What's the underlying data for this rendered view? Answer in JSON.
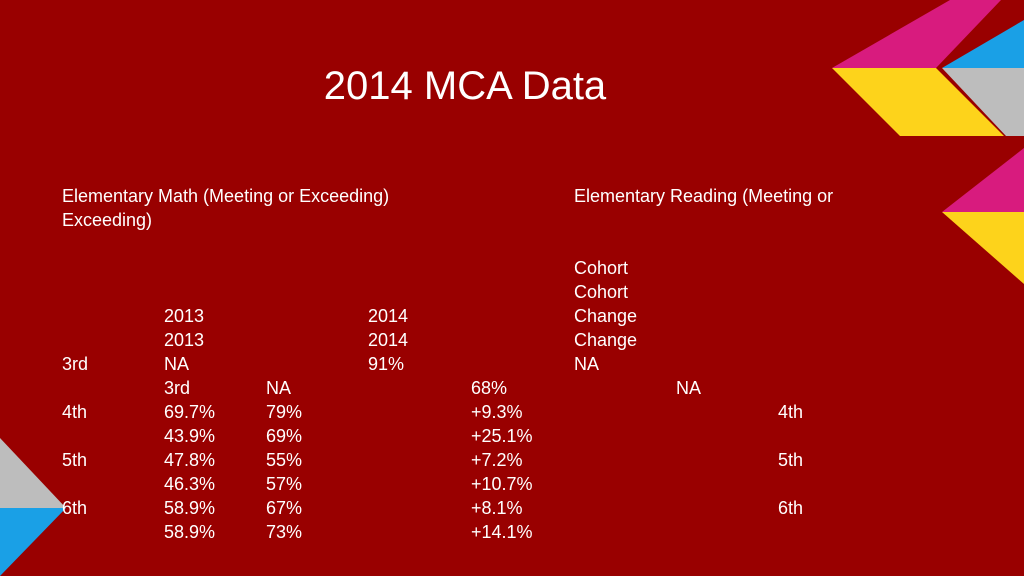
{
  "slide": {
    "title": "2014 MCA Data",
    "math_header": "Elementary Math (Meeting or Exceeding) Exceeding)",
    "reading_header": "Elementary Reading (Meeting or"
  },
  "rows": [
    [
      "Cohort"
    ],
    [
      "Cohort"
    ],
    [
      "2013",
      "2014",
      "Change"
    ],
    [
      "2013",
      "2014",
      "Change"
    ],
    [
      "3rd",
      "NA",
      "91%",
      "NA"
    ],
    [
      "3rd",
      "NA",
      "68%",
      "NA"
    ],
    [
      "4th",
      "69.7%",
      "79%",
      "+9.3%",
      "4th"
    ],
    [
      "43.9%",
      "69%",
      "+25.1%"
    ],
    [
      "5th",
      "47.8%",
      "55%",
      "+7.2%",
      "5th"
    ],
    [
      "46.3%",
      "57%",
      "+10.7%"
    ],
    [
      "6th",
      "58.9%",
      "67%",
      "+8.1%",
      "6th"
    ],
    [
      "58.9%",
      "73%",
      "+14.1%"
    ]
  ],
  "colors": {
    "background": "#990000",
    "magenta": "#d81b7e",
    "yellow": "#fdd31b",
    "blue": "#1aa0e6",
    "gray": "#bdbdbd",
    "dark_red": "#6e0000"
  }
}
